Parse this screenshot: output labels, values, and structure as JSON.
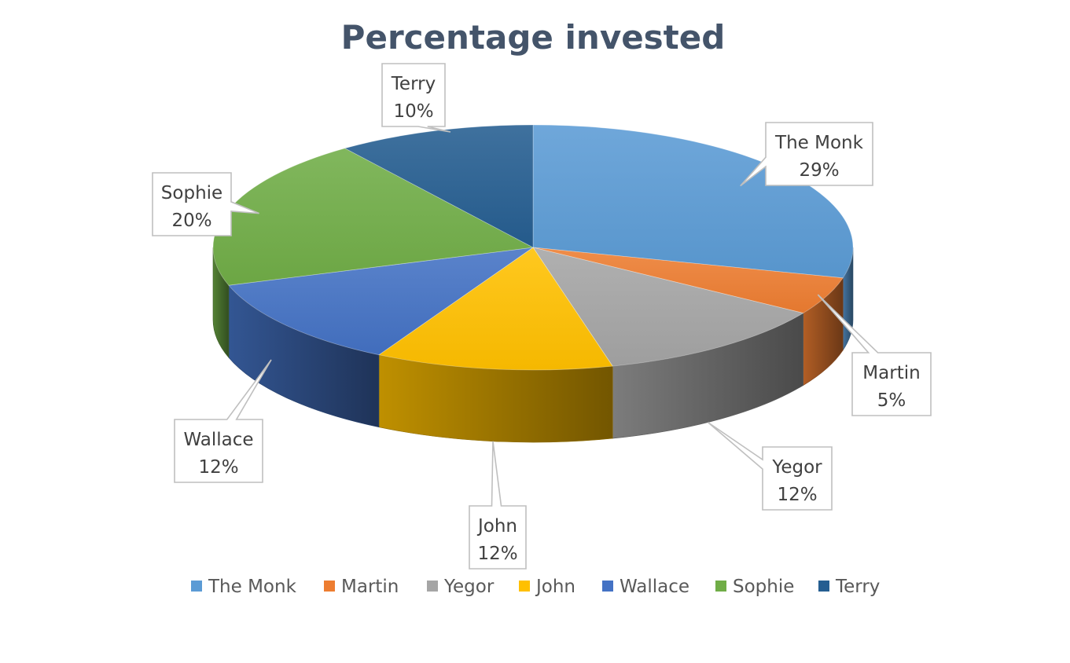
{
  "chart_data": {
    "type": "pie",
    "title": "Percentage invested",
    "categories": [
      "The Monk",
      "Martin",
      "Yegor",
      "John",
      "Wallace",
      "Sophie",
      "Terry"
    ],
    "values": [
      29,
      5,
      12,
      12,
      12,
      20,
      10
    ],
    "value_labels": [
      "29%",
      "5%",
      "12%",
      "12%",
      "12%",
      "20%",
      "10%"
    ],
    "colors": [
      "#5b9bd5",
      "#ed7d31",
      "#a5a5a5",
      "#ffc000",
      "#4472c4",
      "#70ad47",
      "#255e91"
    ],
    "style": "3d-pie",
    "legend_position": "bottom"
  }
}
